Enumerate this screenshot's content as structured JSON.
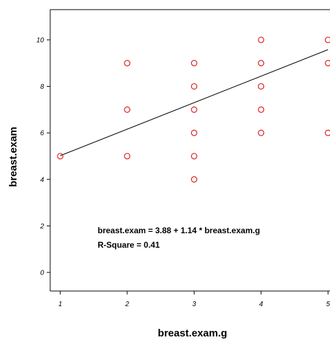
{
  "chart_data": {
    "type": "scatter",
    "xlabel": "breast.exam.g",
    "ylabel": "breast.exam",
    "xlim": [
      0.85,
      5.05
    ],
    "ylim": [
      -0.8,
      11.3
    ],
    "xticks": [
      "1",
      "2",
      "3",
      "4",
      "5"
    ],
    "yticks": [
      "0",
      "2",
      "4",
      "6",
      "8",
      "10"
    ],
    "grid": false,
    "marker_color": "#e02020",
    "line_color": "#000000",
    "points": [
      {
        "x": 1,
        "y": 5
      },
      {
        "x": 2,
        "y": 5
      },
      {
        "x": 2,
        "y": 7
      },
      {
        "x": 2,
        "y": 9
      },
      {
        "x": 3,
        "y": 4
      },
      {
        "x": 3,
        "y": 5
      },
      {
        "x": 3,
        "y": 6
      },
      {
        "x": 3,
        "y": 7
      },
      {
        "x": 3,
        "y": 8
      },
      {
        "x": 3,
        "y": 9
      },
      {
        "x": 4,
        "y": 6
      },
      {
        "x": 4,
        "y": 7
      },
      {
        "x": 4,
        "y": 8
      },
      {
        "x": 4,
        "y": 9
      },
      {
        "x": 4,
        "y": 10
      },
      {
        "x": 5,
        "y": 6
      },
      {
        "x": 5,
        "y": 9
      },
      {
        "x": 5,
        "y": 10
      }
    ],
    "fit_line": {
      "intercept": 3.88,
      "slope": 1.14,
      "x_start": 1,
      "x_end": 5
    },
    "annotations": [
      "breast.exam = 3.88 + 1.14 * breast.exam.g",
      "R-Square = 0.41"
    ]
  }
}
